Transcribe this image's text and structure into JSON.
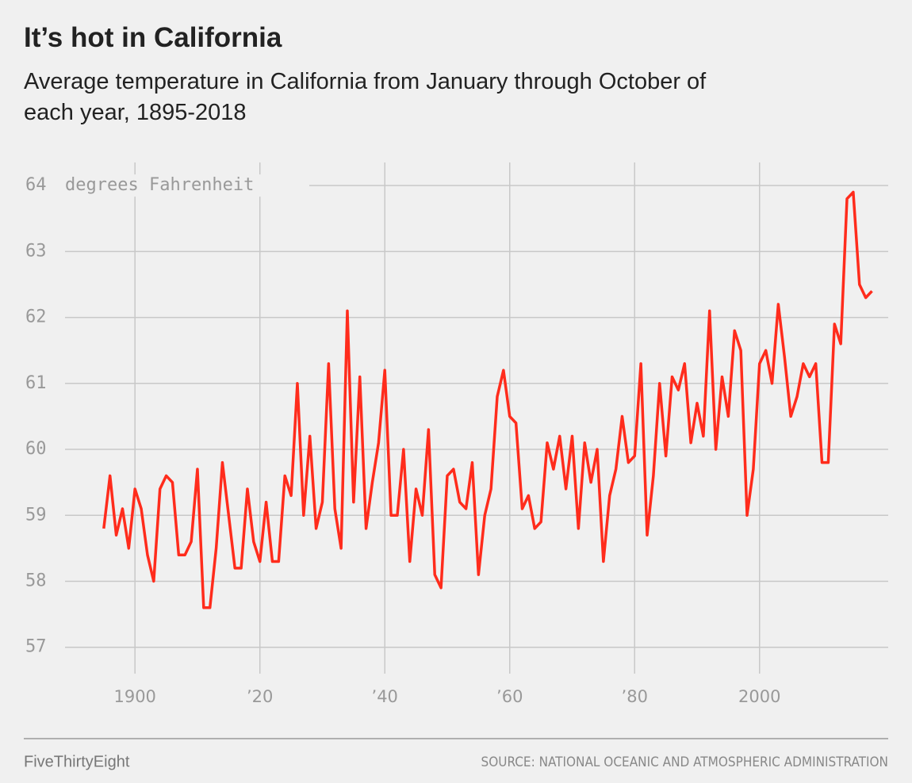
{
  "chart_data": {
    "type": "line",
    "title": "It’s hot in California",
    "subtitle": "Average temperature in California from January through October of each year, 1895-2018",
    "y_unit": "degrees Fahrenheit",
    "source": "SOURCE: NATIONAL OCEANIC AND ATMOSPHERIC ADMINISTRATION",
    "credit": "FiveThirtyEight",
    "color": "#ff2c1c",
    "grid": true,
    "x": [
      1895,
      1896,
      1897,
      1898,
      1899,
      1900,
      1901,
      1902,
      1903,
      1904,
      1905,
      1906,
      1907,
      1908,
      1909,
      1910,
      1911,
      1912,
      1913,
      1914,
      1915,
      1916,
      1917,
      1918,
      1919,
      1920,
      1921,
      1922,
      1923,
      1924,
      1925,
      1926,
      1927,
      1928,
      1929,
      1930,
      1931,
      1932,
      1933,
      1934,
      1935,
      1936,
      1937,
      1938,
      1939,
      1940,
      1941,
      1942,
      1943,
      1944,
      1945,
      1946,
      1947,
      1948,
      1949,
      1950,
      1951,
      1952,
      1953,
      1954,
      1955,
      1956,
      1957,
      1958,
      1959,
      1960,
      1961,
      1962,
      1963,
      1964,
      1965,
      1966,
      1967,
      1968,
      1969,
      1970,
      1971,
      1972,
      1973,
      1974,
      1975,
      1976,
      1977,
      1978,
      1979,
      1980,
      1981,
      1982,
      1983,
      1984,
      1985,
      1986,
      1987,
      1988,
      1989,
      1990,
      1991,
      1992,
      1993,
      1994,
      1995,
      1996,
      1997,
      1998,
      1999,
      2000,
      2001,
      2002,
      2003,
      2004,
      2005,
      2006,
      2007,
      2008,
      2009,
      2010,
      2011,
      2012,
      2013,
      2014,
      2015,
      2016,
      2017,
      2018
    ],
    "values": [
      58.8,
      59.6,
      58.7,
      59.1,
      58.5,
      59.4,
      59.1,
      58.4,
      58.0,
      59.4,
      59.6,
      59.5,
      58.4,
      58.4,
      58.6,
      59.7,
      57.6,
      57.6,
      58.5,
      59.8,
      59.0,
      58.2,
      58.2,
      59.4,
      58.6,
      58.3,
      59.2,
      58.3,
      58.3,
      59.6,
      59.3,
      61.0,
      59.0,
      60.2,
      58.8,
      59.2,
      61.3,
      59.1,
      58.5,
      62.1,
      59.2,
      61.1,
      58.8,
      59.5,
      60.1,
      61.2,
      59.0,
      59.0,
      60.0,
      58.3,
      59.4,
      59.0,
      60.3,
      58.1,
      57.9,
      59.6,
      59.7,
      59.2,
      59.1,
      59.8,
      58.1,
      59.0,
      59.4,
      60.8,
      61.2,
      60.5,
      60.4,
      59.1,
      59.3,
      58.8,
      58.9,
      60.1,
      59.7,
      60.2,
      59.4,
      60.2,
      58.8,
      60.1,
      59.5,
      60.0,
      58.3,
      59.3,
      59.7,
      60.5,
      59.8,
      59.9,
      61.3,
      58.7,
      59.6,
      61.0,
      59.9,
      61.1,
      60.9,
      61.3,
      60.1,
      60.7,
      60.2,
      62.1,
      60.0,
      61.1,
      60.5,
      61.8,
      61.5,
      59.0,
      59.7,
      61.3,
      61.5,
      61.0,
      62.2,
      61.4,
      60.5,
      60.8,
      61.3,
      61.1,
      61.3,
      59.8,
      59.8,
      61.9,
      61.6,
      63.8,
      63.9,
      62.5,
      62.3,
      62.4
    ],
    "xlim": [
      1888.8,
      2020.6
    ],
    "ylim": [
      56.6,
      64.35
    ],
    "xticks": [
      1900,
      {
        "value": 1920,
        "label": "’20"
      },
      {
        "value": 1940,
        "label": "’40"
      },
      {
        "value": 1960,
        "label": "’60"
      },
      {
        "value": 1980,
        "label": "’80"
      },
      2000
    ],
    "yticks": [
      57,
      58,
      59,
      60,
      61,
      62,
      63,
      64
    ]
  }
}
